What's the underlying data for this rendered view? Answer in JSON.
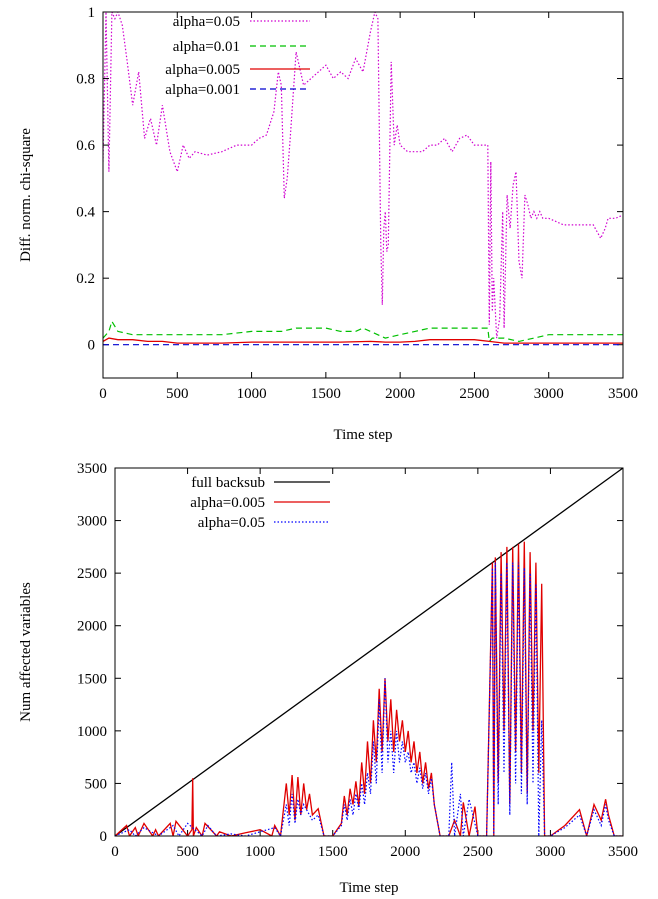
{
  "chart_data": [
    {
      "type": "line",
      "xlabel": "Time step",
      "ylabel": "Diff. norm. chi-square",
      "xlim": [
        0,
        3500
      ],
      "ylim": [
        -0.1,
        1.0
      ],
      "xticks": [
        "0",
        "500",
        "1000",
        "1500",
        "2000",
        "2500",
        "3000",
        "3500"
      ],
      "yticks": [
        "0",
        "0.2",
        "0.4",
        "0.6",
        "0.8",
        "1"
      ],
      "legend_position": "top-left",
      "series": [
        {
          "name": "alpha=0.05",
          "color": "#d000d0",
          "style": "dotted",
          "x": [
            0,
            20,
            40,
            60,
            80,
            100,
            130,
            160,
            200,
            240,
            280,
            320,
            360,
            400,
            450,
            500,
            540,
            580,
            620,
            700,
            800,
            900,
            1000,
            1050,
            1100,
            1150,
            1180,
            1200,
            1220,
            1240,
            1260,
            1300,
            1350,
            1400,
            1450,
            1500,
            1550,
            1600,
            1650,
            1700,
            1750,
            1800,
            1830,
            1850,
            1870,
            1880,
            1890,
            1900,
            1910,
            1920,
            1940,
            1960,
            1980,
            2000,
            2050,
            2100,
            2150,
            2200,
            2250,
            2300,
            2350,
            2400,
            2450,
            2500,
            2550,
            2590,
            2600,
            2610,
            2620,
            2630,
            2650,
            2670,
            2690,
            2700,
            2720,
            2740,
            2760,
            2780,
            2800,
            2820,
            2840,
            2860,
            2880,
            2900,
            2920,
            2940,
            2960,
            3000,
            3100,
            3200,
            3300,
            3350,
            3380,
            3400,
            3450,
            3500
          ],
          "values": [
            0.55,
            1.0,
            0.52,
            1.0,
            0.98,
            1.0,
            0.96,
            0.86,
            0.72,
            0.82,
            0.62,
            0.68,
            0.6,
            0.72,
            0.58,
            0.52,
            0.6,
            0.56,
            0.58,
            0.57,
            0.58,
            0.6,
            0.6,
            0.62,
            0.63,
            0.7,
            0.82,
            0.78,
            0.44,
            0.5,
            0.62,
            0.88,
            0.78,
            0.8,
            0.82,
            0.84,
            0.8,
            0.82,
            0.8,
            0.86,
            0.82,
            0.94,
            1.0,
            0.98,
            0.3,
            0.12,
            0.35,
            0.4,
            0.28,
            0.3,
            0.85,
            0.6,
            0.66,
            0.6,
            0.58,
            0.58,
            0.58,
            0.6,
            0.6,
            0.62,
            0.58,
            0.62,
            0.63,
            0.6,
            0.6,
            0.6,
            0.06,
            0.55,
            0.1,
            0.2,
            0.02,
            0.08,
            0.4,
            0.05,
            0.45,
            0.35,
            0.48,
            0.52,
            0.25,
            0.2,
            0.45,
            0.42,
            0.38,
            0.4,
            0.38,
            0.4,
            0.38,
            0.38,
            0.36,
            0.36,
            0.36,
            0.32,
            0.35,
            0.38,
            0.38,
            0.39
          ]
        },
        {
          "name": "alpha=0.01",
          "color": "#00c000",
          "style": "dashed",
          "x": [
            0,
            40,
            60,
            100,
            200,
            400,
            600,
            800,
            1000,
            1200,
            1300,
            1400,
            1500,
            1600,
            1700,
            1750,
            1800,
            1900,
            2000,
            2100,
            2200,
            2300,
            2400,
            2500,
            2590,
            2600,
            2620,
            2700,
            2800,
            2900,
            3000,
            3200,
            3400,
            3500
          ],
          "values": [
            0.02,
            0.04,
            0.07,
            0.04,
            0.03,
            0.03,
            0.03,
            0.03,
            0.04,
            0.04,
            0.05,
            0.05,
            0.05,
            0.04,
            0.04,
            0.05,
            0.04,
            0.02,
            0.03,
            0.04,
            0.05,
            0.05,
            0.05,
            0.05,
            0.05,
            0.01,
            0.02,
            0.02,
            0.01,
            0.02,
            0.03,
            0.03,
            0.03,
            0.03
          ]
        },
        {
          "name": "alpha=0.005",
          "color": "#e00000",
          "style": "solid",
          "x": [
            0,
            40,
            100,
            200,
            300,
            400,
            500,
            600,
            800,
            1000,
            1200,
            1400,
            1600,
            1800,
            1900,
            2000,
            2100,
            2200,
            2300,
            2400,
            2500,
            2600,
            2700,
            2800,
            3000,
            3200,
            3400,
            3500
          ],
          "values": [
            0.01,
            0.02,
            0.015,
            0.015,
            0.01,
            0.01,
            0.005,
            0.005,
            0.005,
            0.008,
            0.008,
            0.008,
            0.008,
            0.01,
            0.008,
            0.008,
            0.01,
            0.015,
            0.015,
            0.015,
            0.015,
            0.01,
            0.005,
            0.005,
            0.005,
            0.005,
            0.005,
            0.005
          ]
        },
        {
          "name": "alpha=0.001",
          "color": "#0000d0",
          "style": "dashed",
          "x": [
            0,
            3500
          ],
          "values": [
            0.0,
            0.0
          ]
        }
      ]
    },
    {
      "type": "line",
      "xlabel": "Time step",
      "ylabel": "Num affected variables",
      "xlim": [
        0,
        3500
      ],
      "ylim": [
        0,
        3500
      ],
      "xticks": [
        "0",
        "500",
        "1000",
        "1500",
        "2000",
        "2500",
        "3000",
        "3500"
      ],
      "yticks": [
        "0",
        "500",
        "1000",
        "1500",
        "2000",
        "2500",
        "3000",
        "3500"
      ],
      "legend_position": "top-left",
      "series": [
        {
          "name": "full backsub",
          "color": "#000000",
          "style": "solid",
          "x": [
            0,
            3500
          ],
          "values": [
            0,
            3500
          ]
        },
        {
          "name": "alpha=0.005",
          "color": "#e00000",
          "style": "solid",
          "x": [
            0,
            80,
            100,
            140,
            160,
            200,
            260,
            280,
            300,
            380,
            400,
            420,
            500,
            530,
            535,
            540,
            560,
            600,
            620,
            700,
            720,
            800,
            900,
            1000,
            1080,
            1100,
            1140,
            1180,
            1200,
            1220,
            1240,
            1260,
            1280,
            1300,
            1320,
            1340,
            1360,
            1400,
            1440,
            1500,
            1560,
            1580,
            1600,
            1620,
            1640,
            1660,
            1680,
            1700,
            1720,
            1740,
            1760,
            1780,
            1800,
            1820,
            1840,
            1860,
            1880,
            1900,
            1920,
            1940,
            1960,
            1980,
            2000,
            2020,
            2040,
            2060,
            2080,
            2100,
            2120,
            2140,
            2160,
            2180,
            2200,
            2240,
            2300,
            2340,
            2380,
            2400,
            2440,
            2480,
            2500,
            2560,
            2600,
            2610,
            2620,
            2640,
            2660,
            2680,
            2700,
            2720,
            2740,
            2760,
            2780,
            2800,
            2820,
            2840,
            2860,
            2880,
            2900,
            2920,
            2940,
            2960,
            3000,
            3100,
            3200,
            3250,
            3300,
            3350,
            3380,
            3400,
            3440,
            3500
          ],
          "values": [
            0,
            100,
            0,
            80,
            0,
            120,
            0,
            60,
            0,
            120,
            0,
            140,
            0,
            60,
            550,
            0,
            80,
            0,
            120,
            0,
            40,
            0,
            30,
            60,
            0,
            100,
            0,
            500,
            200,
            580,
            150,
            560,
            200,
            500,
            250,
            400,
            200,
            260,
            0,
            0,
            120,
            380,
            200,
            450,
            300,
            520,
            280,
            700,
            400,
            900,
            500,
            1100,
            700,
            1400,
            800,
            1500,
            900,
            1300,
            800,
            1200,
            900,
            1100,
            800,
            1000,
            700,
            900,
            600,
            800,
            500,
            700,
            450,
            600,
            300,
            0,
            0,
            150,
            0,
            320,
            0,
            280,
            0,
            0,
            2600,
            0,
            2650,
            500,
            2700,
            1000,
            2750,
            300,
            2750,
            800,
            2780,
            600,
            2800,
            400,
            2700,
            1000,
            2600,
            600,
            2400,
            0,
            0,
            100,
            250,
            0,
            300,
            150,
            350,
            200,
            0,
            0
          ]
        },
        {
          "name": "alpha=0.05",
          "color": "#0000ff",
          "style": "dotted",
          "x": [
            0,
            100,
            140,
            200,
            300,
            400,
            440,
            500,
            600,
            640,
            700,
            800,
            900,
            1000,
            1100,
            1140,
            1180,
            1200,
            1220,
            1240,
            1260,
            1280,
            1300,
            1340,
            1360,
            1400,
            1440,
            1500,
            1560,
            1580,
            1600,
            1620,
            1640,
            1660,
            1680,
            1700,
            1720,
            1740,
            1760,
            1780,
            1800,
            1820,
            1840,
            1860,
            1880,
            1900,
            1920,
            1940,
            1960,
            1980,
            2000,
            2020,
            2040,
            2060,
            2080,
            2100,
            2120,
            2140,
            2160,
            2180,
            2200,
            2240,
            2300,
            2320,
            2340,
            2380,
            2400,
            2440,
            2500,
            2560,
            2600,
            2610,
            2620,
            2640,
            2660,
            2680,
            2700,
            2720,
            2740,
            2760,
            2780,
            2800,
            2820,
            2840,
            2860,
            2880,
            2900,
            2920,
            2940,
            2960,
            3000,
            3100,
            3200,
            3250,
            3300,
            3350,
            3380,
            3400,
            3440,
            3500
          ],
          "values": [
            0,
            60,
            0,
            80,
            0,
            100,
            0,
            120,
            0,
            100,
            0,
            20,
            0,
            40,
            80,
            0,
            300,
            100,
            400,
            120,
            350,
            200,
            300,
            200,
            150,
            200,
            0,
            0,
            100,
            300,
            150,
            350,
            200,
            400,
            250,
            500,
            300,
            600,
            400,
            900,
            500,
            1300,
            600,
            1500,
            700,
            1000,
            600,
            1000,
            700,
            900,
            700,
            800,
            600,
            700,
            500,
            650,
            450,
            600,
            400,
            550,
            300,
            0,
            0,
            700,
            0,
            400,
            0,
            350,
            0,
            0,
            2550,
            0,
            2600,
            300,
            2500,
            600,
            2600,
            200,
            2600,
            500,
            2600,
            400,
            2550,
            300,
            2500,
            500,
            2400,
            0,
            1100,
            0,
            0,
            80,
            200,
            0,
            250,
            100,
            300,
            150,
            0,
            0
          ]
        }
      ]
    }
  ]
}
